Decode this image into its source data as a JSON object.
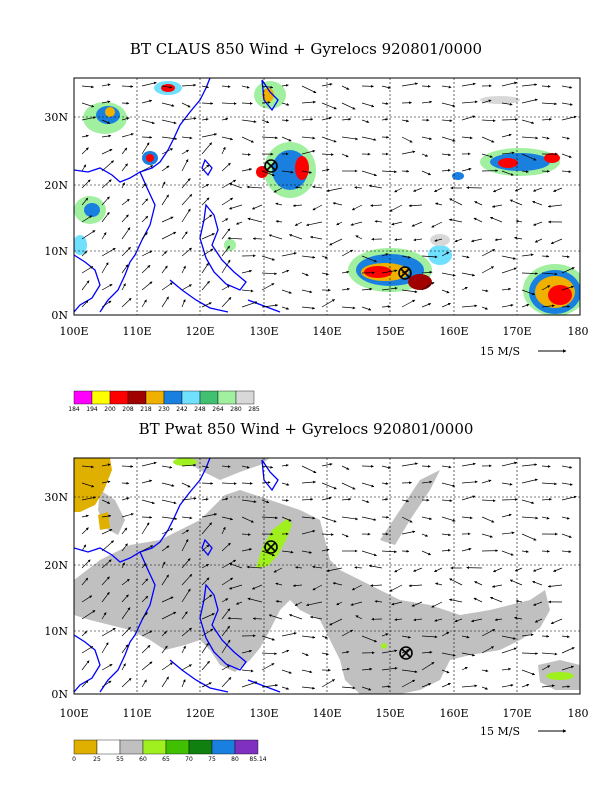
{
  "panels": [
    {
      "title": "BT CLAUS 850 Wind + Gyrelocs 920801/0000",
      "lat_labels": [
        "30N",
        "20N",
        "10N",
        "0N"
      ],
      "lon_labels": [
        "100E",
        "110E",
        "120E",
        "130E",
        "140E",
        "150E",
        "160E",
        "170E",
        "180"
      ],
      "vector_ref": "15 M/S",
      "colorbar": {
        "labels": [
          "184",
          "194",
          "200",
          "208",
          "218",
          "230",
          "242",
          "248",
          "264",
          "280",
          "285"
        ],
        "colors": [
          "#ff00ff",
          "#ffff00",
          "#ff0000",
          "#a00000",
          "#f0b000",
          "#1a80e0",
          "#70e0ff",
          "#40c070",
          "#a0f0a0",
          "#d8d8d8"
        ]
      },
      "storm_markers": [
        "⊗",
        "⊗"
      ]
    },
    {
      "title": "BT Pwat 850 Wind + Gyrelocs 920801/0000",
      "lat_labels": [
        "30N",
        "20N",
        "10N",
        "0N"
      ],
      "lon_labels": [
        "100E",
        "110E",
        "120E",
        "130E",
        "140E",
        "150E",
        "160E",
        "170E",
        "180"
      ],
      "vector_ref": "15 M/S",
      "colorbar": {
        "labels": [
          "0",
          "25",
          "55",
          "60",
          "65",
          "70",
          "75",
          "80",
          "85.14"
        ],
        "colors": [
          "#e0b000",
          "#ffffff",
          "#c0c0c0",
          "#a0f020",
          "#40c000",
          "#108010",
          "#1a80e0",
          "#8030c0"
        ]
      },
      "storm_markers": [
        "⊗",
        "⊗"
      ]
    }
  ]
}
